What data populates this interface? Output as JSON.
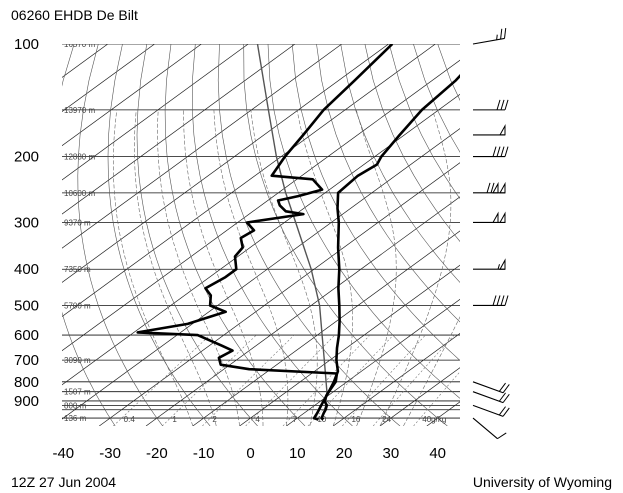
{
  "chart_data": {
    "type": "skew-t log-p sounding",
    "title": "06260 EHDB De Bilt",
    "footer_left": "12Z 27 Jun 2004",
    "footer_right": "University of Wyoming",
    "pressure_ticks": [
      100,
      200,
      300,
      400,
      500,
      600,
      700,
      800,
      900
    ],
    "pressure_range_hpa": [
      100,
      1050
    ],
    "temperature_ticks": [
      -40,
      -30,
      -20,
      -10,
      0,
      10,
      20,
      30,
      40
    ],
    "temperature_range_c": [
      -40,
      45
    ],
    "height_labels": [
      {
        "p": 100,
        "text": "16570 m"
      },
      {
        "p": 150,
        "text": "13970 m"
      },
      {
        "p": 200,
        "text": "12880 m"
      },
      {
        "p": 250,
        "text": "10600 m"
      },
      {
        "p": 300,
        "text": "9370 m"
      },
      {
        "p": 400,
        "text": "7350 m"
      },
      {
        "p": 500,
        "text": "5700 m"
      },
      {
        "p": 700,
        "text": "3090 m"
      },
      {
        "p": 850,
        "text": "1507 m"
      },
      {
        "p": 925,
        "text": "800 m"
      },
      {
        "p": 1000,
        "text": "136 m"
      }
    ],
    "mixing_ratio_labels": [
      "0.4",
      "1",
      "2",
      "4",
      "7",
      "10",
      "16",
      "24",
      "40g/kg"
    ],
    "temperature_profile": [
      {
        "p": 1010,
        "t": 16.0
      },
      {
        "p": 1000,
        "t": 15.2
      },
      {
        "p": 970,
        "t": 14.2
      },
      {
        "p": 950,
        "t": 13.6
      },
      {
        "p": 925,
        "t": 12.6
      },
      {
        "p": 900,
        "t": 10.8
      },
      {
        "p": 870,
        "t": 9.6
      },
      {
        "p": 850,
        "t": 9.0
      },
      {
        "p": 800,
        "t": 7.2
      },
      {
        "p": 750,
        "t": 5.0
      },
      {
        "p": 700,
        "t": 1.4
      },
      {
        "p": 650,
        "t": -2.0
      },
      {
        "p": 600,
        "t": -5.4
      },
      {
        "p": 550,
        "t": -9.4
      },
      {
        "p": 500,
        "t": -14.0
      },
      {
        "p": 450,
        "t": -19.2
      },
      {
        "p": 400,
        "t": -24.6
      },
      {
        "p": 350,
        "t": -31.2
      },
      {
        "p": 300,
        "t": -38.4
      },
      {
        "p": 275,
        "t": -42.8
      },
      {
        "p": 250,
        "t": -47.2
      },
      {
        "p": 225,
        "t": -48.0
      },
      {
        "p": 210,
        "t": -47.2
      },
      {
        "p": 200,
        "t": -48.6
      },
      {
        "p": 175,
        "t": -51.0
      },
      {
        "p": 150,
        "t": -53.6
      },
      {
        "p": 125,
        "t": -55.0
      },
      {
        "p": 100,
        "t": -58.4
      }
    ],
    "dewpoint_profile": [
      {
        "p": 1010,
        "t": 15.0
      },
      {
        "p": 1000,
        "t": 13.6
      },
      {
        "p": 970,
        "t": 12.8
      },
      {
        "p": 950,
        "t": 12.2
      },
      {
        "p": 925,
        "t": 11.4
      },
      {
        "p": 900,
        "t": 10.6
      },
      {
        "p": 850,
        "t": 9.0
      },
      {
        "p": 800,
        "t": 7.6
      },
      {
        "p": 760,
        "t": 5.4
      },
      {
        "p": 740,
        "t": -14.6
      },
      {
        "p": 720,
        "t": -22.0
      },
      {
        "p": 690,
        "t": -24.4
      },
      {
        "p": 660,
        "t": -23.6
      },
      {
        "p": 640,
        "t": -27.4
      },
      {
        "p": 620,
        "t": -31.4
      },
      {
        "p": 600,
        "t": -35.6
      },
      {
        "p": 590,
        "t": -49.2
      },
      {
        "p": 560,
        "t": -41.0
      },
      {
        "p": 520,
        "t": -36.4
      },
      {
        "p": 500,
        "t": -41.6
      },
      {
        "p": 470,
        "t": -44.4
      },
      {
        "p": 450,
        "t": -47.6
      },
      {
        "p": 420,
        "t": -46.6
      },
      {
        "p": 400,
        "t": -46.6
      },
      {
        "p": 370,
        "t": -50.6
      },
      {
        "p": 350,
        "t": -51.6
      },
      {
        "p": 330,
        "t": -54.8
      },
      {
        "p": 315,
        "t": -54.2
      },
      {
        "p": 300,
        "t": -58.0
      },
      {
        "p": 285,
        "t": -48.4
      },
      {
        "p": 280,
        "t": -53.0
      },
      {
        "p": 270,
        "t": -56.0
      },
      {
        "p": 262,
        "t": -57.8
      },
      {
        "p": 255,
        "t": -54.8
      },
      {
        "p": 245,
        "t": -51.6
      },
      {
        "p": 230,
        "t": -56.6
      },
      {
        "p": 225,
        "t": -66.4
      },
      {
        "p": 200,
        "t": -69.2
      },
      {
        "p": 175,
        "t": -71.6
      },
      {
        "p": 150,
        "t": -74.6
      },
      {
        "p": 125,
        "t": -76.6
      },
      {
        "p": 100,
        "t": -79.2
      }
    ],
    "parcel_path": [
      {
        "p": 1000,
        "t": 15.2
      },
      {
        "p": 930,
        "t": 12.6
      },
      {
        "p": 850,
        "t": 8.6
      },
      {
        "p": 700,
        "t": -1.2
      },
      {
        "p": 600,
        "t": -9.0
      },
      {
        "p": 500,
        "t": -18.2
      },
      {
        "p": 400,
        "t": -30.6
      },
      {
        "p": 300,
        "t": -47.6
      },
      {
        "p": 250,
        "t": -58.4
      },
      {
        "p": 200,
        "t": -71.0
      },
      {
        "p": 150,
        "t": -86.4
      },
      {
        "p": 100,
        "t": -108.0
      }
    ],
    "wind_barbs": [
      {
        "p": 100,
        "dir": 280,
        "speed_kt": 25
      },
      {
        "p": 150,
        "dir": 270,
        "speed_kt": 30
      },
      {
        "p": 175,
        "dir": 270,
        "speed_kt": 50
      },
      {
        "p": 200,
        "dir": 270,
        "speed_kt": 40
      },
      {
        "p": 250,
        "dir": 270,
        "speed_kt": 120
      },
      {
        "p": 300,
        "dir": 270,
        "speed_kt": 100
      },
      {
        "p": 400,
        "dir": 270,
        "speed_kt": 55
      },
      {
        "p": 500,
        "dir": 270,
        "speed_kt": 40
      },
      {
        "p": 800,
        "dir": 250,
        "speed_kt": 20
      },
      {
        "p": 850,
        "dir": 250,
        "speed_kt": 20
      },
      {
        "p": 925,
        "dir": 250,
        "speed_kt": 20
      },
      {
        "p": 1000,
        "dir": 230,
        "speed_kt": 10
      }
    ]
  }
}
